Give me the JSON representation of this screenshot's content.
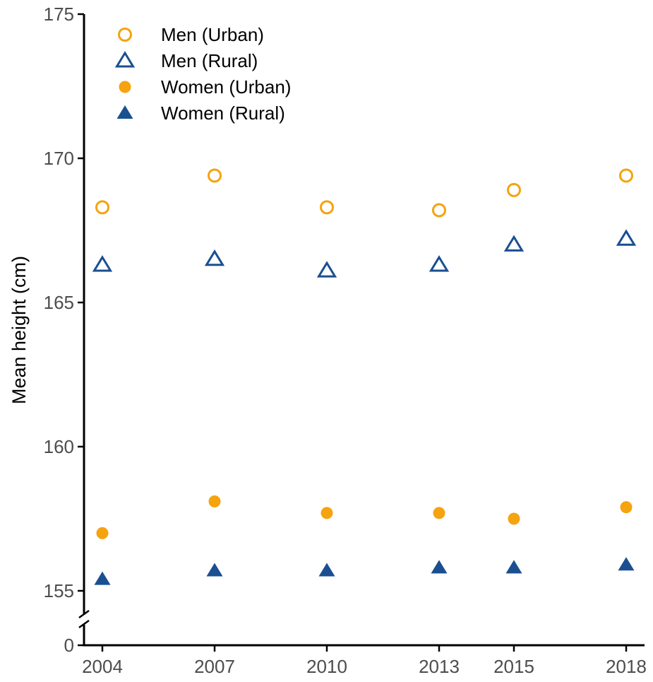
{
  "chart_data": {
    "type": "scatter",
    "title": "",
    "xlabel": "",
    "ylabel": "Mean height (cm)",
    "x": [
      2004,
      2007,
      2010,
      2013,
      2015,
      2018
    ],
    "x_tick_labels": [
      "2004",
      "2007",
      "2010",
      "2013",
      "2015",
      "2018"
    ],
    "y_tick_labels": [
      "0",
      "155",
      "160",
      "165",
      "170",
      "175"
    ],
    "ylim": [
      155,
      175
    ],
    "y_axis_break": "broken axis between 0 and 155",
    "grid": false,
    "legend_position": "top-left",
    "series": [
      {
        "name": "Men (Urban)",
        "marker": "circle-open",
        "color": "#F5A30F",
        "values": [
          168.3,
          169.4,
          168.3,
          168.2,
          168.9,
          169.4
        ]
      },
      {
        "name": "Men (Rural)",
        "marker": "triangle-open",
        "color": "#1A4F91",
        "values": [
          166.3,
          166.5,
          166.1,
          166.3,
          167.0,
          167.2
        ]
      },
      {
        "name": "Women (Urban)",
        "marker": "circle-filled",
        "color": "#F5A30F",
        "values": [
          157.0,
          158.1,
          157.7,
          157.7,
          157.5,
          157.9
        ]
      },
      {
        "name": "Women (Rural)",
        "marker": "triangle-filled",
        "color": "#1A4F91",
        "values": [
          155.4,
          155.7,
          155.7,
          155.8,
          155.8,
          155.9
        ]
      }
    ]
  }
}
